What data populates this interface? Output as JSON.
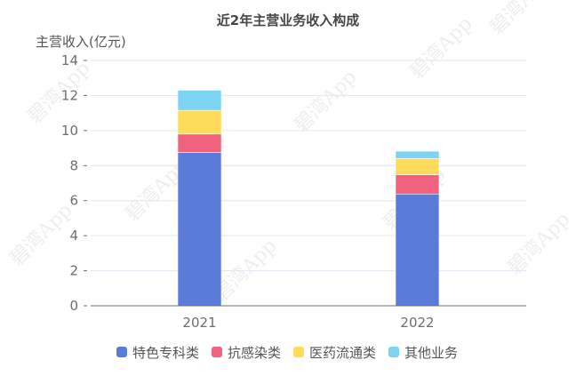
{
  "watermark_text": "碧湾App",
  "chart_data": {
    "type": "bar",
    "stacked": true,
    "title": "近2年主营业务收入构成",
    "ylabel": "主营收入(亿元)",
    "xlabel": "",
    "categories": [
      "2021",
      "2022"
    ],
    "ylim": [
      0,
      14
    ],
    "yticks": [
      0,
      2,
      4,
      6,
      8,
      10,
      12,
      14
    ],
    "grid": true,
    "legend_position": "bottom",
    "series": [
      {
        "name": "特色专科类",
        "color": "#5b7bd8",
        "values": [
          8.75,
          6.38
        ]
      },
      {
        "name": "抗感染类",
        "color": "#f0627e",
        "values": [
          1.05,
          1.1
        ]
      },
      {
        "name": "医药流通类",
        "color": "#fddc5c",
        "values": [
          1.35,
          0.92
        ]
      },
      {
        "name": "其他业务",
        "color": "#7dd3f2",
        "values": [
          1.15,
          0.42
        ]
      }
    ]
  }
}
